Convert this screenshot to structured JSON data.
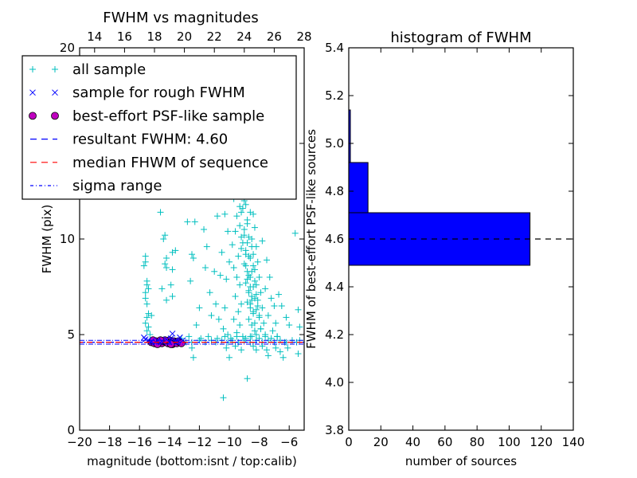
{
  "chart_data": [
    {
      "type": "scatter",
      "title": "FWHM vs magnitudes",
      "xlabel": "magnitude (bottom:isnt / top:calib)",
      "ylabel": "FWHM (pix)",
      "xlim": [
        -20,
        -5
      ],
      "ylim": [
        0,
        20
      ],
      "xticks": [
        -20,
        -18,
        -16,
        -14,
        -12,
        -10,
        -8,
        -6
      ],
      "xtick_labels": [
        "−20",
        "−18",
        "−16",
        "−14",
        "−12",
        "−10",
        "−8",
        "−6"
      ],
      "yticks": [
        0,
        5,
        10,
        15,
        20
      ],
      "ytick_labels": [
        "0",
        "5",
        "10",
        "15",
        "20"
      ],
      "top_xlim": [
        13,
        28
      ],
      "top_xticks": [
        14,
        16,
        18,
        20,
        22,
        24,
        26,
        28
      ],
      "top_xtick_labels": [
        "14",
        "16",
        "18",
        "20",
        "22",
        "24",
        "26",
        "28"
      ],
      "legend_position": "top-left",
      "legend": [
        {
          "label": "all sample",
          "marker": "plus",
          "color": "#00bfbf"
        },
        {
          "label": "sample for rough FWHM",
          "marker": "x",
          "color": "#0000ff"
        },
        {
          "label": "best-effort PSF-like sample",
          "marker": "circle",
          "color": "#bf00bf"
        },
        {
          "label": "resultant FWHM: 4.60",
          "marker": "dashed",
          "color": "#0000ff"
        },
        {
          "label": "median FHWM of sequence",
          "marker": "dashed",
          "color": "#ff0000"
        },
        {
          "label": "sigma range",
          "marker": "dashdot",
          "color": "#0000ff"
        }
      ],
      "resultant_fwhm": 4.6,
      "median_fwhm": 4.6,
      "sigma_range": [
        4.5,
        4.7
      ],
      "series": {
        "all_sample": [
          [
            -15.6,
            9.1
          ],
          [
            -15.6,
            8.8
          ],
          [
            -15.7,
            8.6
          ],
          [
            -15.5,
            7.8
          ],
          [
            -15.5,
            7.6
          ],
          [
            -15.6,
            7.2
          ],
          [
            -15.6,
            6.9
          ],
          [
            -15.5,
            6.6
          ],
          [
            -15.4,
            6.1
          ],
          [
            -15.5,
            5.9
          ],
          [
            -15.6,
            5.6
          ],
          [
            -15.4,
            5.4
          ],
          [
            -15.5,
            5.2
          ],
          [
            -15.3,
            5.0
          ],
          [
            -15.2,
            6.0
          ],
          [
            -15.4,
            7.4
          ],
          [
            -14.6,
            11.4
          ],
          [
            -14.4,
            10.0
          ],
          [
            -14.3,
            10.2
          ],
          [
            -14.2,
            9.0
          ],
          [
            -14.3,
            8.7
          ],
          [
            -14.2,
            8.5
          ],
          [
            -14.5,
            7.4
          ],
          [
            -14.2,
            6.8
          ],
          [
            -13.9,
            7.6
          ],
          [
            -13.8,
            9.3
          ],
          [
            -13.6,
            9.4
          ],
          [
            -13.8,
            8.4
          ],
          [
            -13.8,
            7.0
          ],
          [
            -12.8,
            10.9
          ],
          [
            -12.5,
            9.2
          ],
          [
            -12.4,
            9.0
          ],
          [
            -12.3,
            10.9
          ],
          [
            -12.6,
            7.8
          ],
          [
            -12.5,
            4.3
          ],
          [
            -12.4,
            3.8
          ],
          [
            -12.2,
            5.5
          ],
          [
            -12.0,
            6.4
          ],
          [
            -11.7,
            10.5
          ],
          [
            -11.5,
            9.6
          ],
          [
            -11.6,
            8.5
          ],
          [
            -11.3,
            7.2
          ],
          [
            -11.0,
            8.3
          ],
          [
            -11.2,
            6.0
          ],
          [
            -10.8,
            11.2
          ],
          [
            -10.6,
            12.6
          ],
          [
            -10.3,
            11.3
          ],
          [
            -10.5,
            9.3
          ],
          [
            -10.6,
            8.1
          ],
          [
            -10.9,
            6.6
          ],
          [
            -10.7,
            5.8
          ],
          [
            -10.4,
            5.3
          ],
          [
            -10.2,
            4.3
          ],
          [
            -10.4,
            1.7
          ],
          [
            -10.0,
            3.8
          ],
          [
            -10.1,
            5.0
          ],
          [
            -10.3,
            6.4
          ],
          [
            -10.2,
            7.9
          ],
          [
            -10.0,
            8.8
          ],
          [
            -10.1,
            10.4
          ],
          [
            -9.9,
            13.6
          ],
          [
            -9.7,
            12.1
          ],
          [
            -9.5,
            11.2
          ],
          [
            -9.6,
            10.4
          ],
          [
            -9.8,
            9.7
          ],
          [
            -9.4,
            9.1
          ],
          [
            -9.7,
            8.5
          ],
          [
            -9.5,
            8.0
          ],
          [
            -9.3,
            7.6
          ],
          [
            -9.6,
            7.0
          ],
          [
            -9.2,
            6.6
          ],
          [
            -9.4,
            6.2
          ],
          [
            -9.7,
            5.8
          ],
          [
            -9.3,
            5.5
          ],
          [
            -9.5,
            5.1
          ],
          [
            -9.1,
            4.9
          ],
          [
            -9.6,
            4.4
          ],
          [
            -9.2,
            4.2
          ],
          [
            -9.0,
            13.0
          ],
          [
            -9.1,
            12.4
          ],
          [
            -8.9,
            11.8
          ],
          [
            -9.2,
            11.4
          ],
          [
            -8.8,
            11.0
          ],
          [
            -9.0,
            10.5
          ],
          [
            -8.7,
            10.1
          ],
          [
            -9.1,
            9.8
          ],
          [
            -8.9,
            9.4
          ],
          [
            -8.6,
            9.0
          ],
          [
            -9.0,
            8.7
          ],
          [
            -8.8,
            8.3
          ],
          [
            -8.6,
            8.0
          ],
          [
            -8.9,
            7.7
          ],
          [
            -8.7,
            7.3
          ],
          [
            -8.5,
            7.0
          ],
          [
            -8.8,
            6.7
          ],
          [
            -8.6,
            6.4
          ],
          [
            -8.4,
            6.1
          ],
          [
            -8.7,
            5.8
          ],
          [
            -8.5,
            5.5
          ],
          [
            -8.3,
            5.2
          ],
          [
            -8.6,
            4.9
          ],
          [
            -8.4,
            4.4
          ],
          [
            -8.8,
            2.7
          ],
          [
            -8.2,
            4.2
          ],
          [
            -8.4,
            11.3
          ],
          [
            -8.3,
            10.6
          ],
          [
            -8.5,
            10.0
          ],
          [
            -8.2,
            9.6
          ],
          [
            -8.4,
            9.2
          ],
          [
            -8.1,
            8.8
          ],
          [
            -8.3,
            8.4
          ],
          [
            -8.0,
            8.0
          ],
          [
            -8.2,
            7.6
          ],
          [
            -7.9,
            7.2
          ],
          [
            -8.1,
            6.8
          ],
          [
            -7.8,
            6.4
          ],
          [
            -8.0,
            6.0
          ],
          [
            -7.7,
            5.6
          ],
          [
            -7.9,
            5.3
          ],
          [
            -7.6,
            5.0
          ],
          [
            -7.8,
            4.4
          ],
          [
            -7.5,
            4.2
          ],
          [
            -7.4,
            3.9
          ],
          [
            -7.8,
            9.9
          ],
          [
            -7.5,
            8.9
          ],
          [
            -7.3,
            8.0
          ],
          [
            -7.6,
            7.4
          ],
          [
            -7.2,
            6.9
          ],
          [
            -7.0,
            6.5
          ],
          [
            -7.4,
            6.0
          ],
          [
            -6.9,
            5.6
          ],
          [
            -7.1,
            5.2
          ],
          [
            -6.8,
            4.9
          ],
          [
            -6.9,
            4.3
          ],
          [
            -6.6,
            4.1
          ],
          [
            -6.4,
            3.8
          ],
          [
            -6.7,
            7.1
          ],
          [
            -6.5,
            6.5
          ],
          [
            -6.2,
            5.9
          ],
          [
            -6.0,
            5.5
          ],
          [
            -6.3,
            4.6
          ],
          [
            -5.6,
            10.3
          ],
          [
            -5.4,
            6.3
          ],
          [
            -5.3,
            5.4
          ],
          [
            -5.3,
            4.7
          ],
          [
            -5.4,
            4.0
          ],
          [
            -6.1,
            4.3
          ],
          [
            -12.9,
            4.6
          ],
          [
            -12.5,
            4.6
          ],
          [
            -12.0,
            4.7
          ],
          [
            -11.6,
            4.6
          ],
          [
            -11.2,
            4.7
          ],
          [
            -10.9,
            4.6
          ],
          [
            -10.5,
            4.7
          ],
          [
            -10.1,
            4.6
          ],
          [
            -9.8,
            4.7
          ],
          [
            -9.4,
            4.6
          ],
          [
            -9.0,
            4.7
          ],
          [
            -8.6,
            4.6
          ],
          [
            -8.2,
            4.7
          ],
          [
            -7.8,
            4.6
          ],
          [
            -7.4,
            4.7
          ],
          [
            -7.0,
            4.6
          ],
          [
            -6.6,
            4.7
          ],
          [
            -6.2,
            4.6
          ],
          [
            -5.8,
            4.7
          ],
          [
            -5.5,
            4.6
          ],
          [
            -13.2,
            4.8
          ],
          [
            -12.7,
            4.9
          ],
          [
            -11.9,
            4.8
          ],
          [
            -11.4,
            4.9
          ],
          [
            -10.8,
            4.8
          ],
          [
            -10.3,
            4.9
          ],
          [
            -9.9,
            4.8
          ],
          [
            -9.5,
            4.9
          ],
          [
            -8.9,
            4.8
          ],
          [
            -8.5,
            4.9
          ],
          [
            -8.0,
            4.8
          ],
          [
            -7.6,
            4.9
          ],
          [
            -7.2,
            4.8
          ],
          [
            -6.8,
            4.9
          ],
          [
            -9.3,
            12.8
          ],
          [
            -9.0,
            12.0
          ],
          [
            -8.7,
            12.6
          ],
          [
            -9.3,
            11.7
          ],
          [
            -8.8,
            10.8
          ],
          [
            -9.2,
            10.1
          ],
          [
            -8.5,
            9.6
          ],
          [
            -8.9,
            9.2
          ],
          [
            -8.4,
            8.6
          ],
          [
            -8.7,
            8.1
          ],
          [
            -8.3,
            7.8
          ],
          [
            -8.6,
            7.5
          ],
          [
            -8.2,
            7.1
          ],
          [
            -8.5,
            6.8
          ],
          [
            -8.1,
            6.5
          ],
          [
            -8.4,
            6.2
          ],
          [
            -8.0,
            5.9
          ],
          [
            -8.3,
            5.6
          ],
          [
            -7.9,
            5.3
          ],
          [
            -8.2,
            5.0
          ],
          [
            -9.6,
            13.2
          ],
          [
            -10.0,
            13.0
          ],
          [
            -9.3,
            13.4
          ],
          [
            -8.9,
            12.9
          ],
          [
            -9.4,
            12.3
          ],
          [
            -9.1,
            11.6
          ],
          [
            -8.6,
            11.4
          ],
          [
            -9.3,
            10.7
          ],
          [
            -9.0,
            10.2
          ],
          [
            -8.8,
            9.8
          ],
          [
            -9.2,
            9.5
          ],
          [
            -8.7,
            9.1
          ],
          [
            -8.9,
            8.6
          ],
          [
            -8.5,
            8.3
          ],
          [
            -8.8,
            7.9
          ],
          [
            -8.4,
            7.5
          ],
          [
            -8.7,
            7.2
          ],
          [
            -8.3,
            6.9
          ],
          [
            -8.6,
            6.6
          ],
          [
            -8.2,
            6.3
          ]
        ],
        "rough_sample": [
          [
            -15.7,
            4.85
          ],
          [
            -15.6,
            4.75
          ],
          [
            -15.4,
            4.7
          ],
          [
            -15.2,
            4.65
          ],
          [
            -14.8,
            4.7
          ],
          [
            -14.5,
            4.65
          ],
          [
            -14.2,
            4.75
          ],
          [
            -13.9,
            4.8
          ],
          [
            -13.8,
            5.05
          ],
          [
            -13.6,
            4.7
          ],
          [
            -13.3,
            4.85
          ],
          [
            -13.1,
            4.7
          ],
          [
            -14.9,
            4.6
          ],
          [
            -14.0,
            4.6
          ],
          [
            -13.5,
            4.6
          ]
        ],
        "psf_sample": [
          [
            -15.2,
            4.6
          ],
          [
            -15.0,
            4.55
          ],
          [
            -14.9,
            4.65
          ],
          [
            -14.7,
            4.6
          ],
          [
            -14.5,
            4.55
          ],
          [
            -14.4,
            4.65
          ],
          [
            -14.2,
            4.6
          ],
          [
            -14.1,
            4.55
          ],
          [
            -14.0,
            4.7
          ],
          [
            -13.9,
            4.6
          ],
          [
            -13.8,
            4.5
          ],
          [
            -13.7,
            4.65
          ],
          [
            -13.6,
            4.6
          ],
          [
            -13.5,
            4.55
          ],
          [
            -13.4,
            4.65
          ],
          [
            -13.3,
            4.6
          ],
          [
            -13.2,
            4.55
          ],
          [
            -14.8,
            4.5
          ],
          [
            -14.3,
            4.7
          ],
          [
            -13.9,
            4.5
          ],
          [
            -14.6,
            4.7
          ],
          [
            -15.1,
            4.7
          ]
        ]
      }
    },
    {
      "type": "bar",
      "orientation": "horizontal",
      "title": "histogram of FWHM",
      "xlabel": "number of sources",
      "ylabel": "FWHM of best-effort PSF-like sources",
      "xlim": [
        0,
        140
      ],
      "ylim": [
        3.8,
        5.4
      ],
      "xticks": [
        0,
        20,
        40,
        60,
        80,
        100,
        120,
        140
      ],
      "xtick_labels": [
        "0",
        "20",
        "40",
        "60",
        "80",
        "100",
        "120",
        "140"
      ],
      "yticks": [
        3.8,
        4.0,
        4.2,
        4.4,
        4.6,
        4.8,
        5.0,
        5.2,
        5.4
      ],
      "ytick_labels": [
        "3.8",
        "4.0",
        "4.2",
        "4.4",
        "4.6",
        "4.8",
        "5.0",
        "5.2",
        "5.4"
      ],
      "bar_color": "#0000ff",
      "bins": [
        {
          "low": 4.49,
          "high": 4.71,
          "count": 113
        },
        {
          "low": 4.71,
          "high": 4.92,
          "count": 12
        },
        {
          "low": 4.92,
          "high": 5.14,
          "count": 1
        }
      ],
      "reference_line": 4.6
    }
  ]
}
